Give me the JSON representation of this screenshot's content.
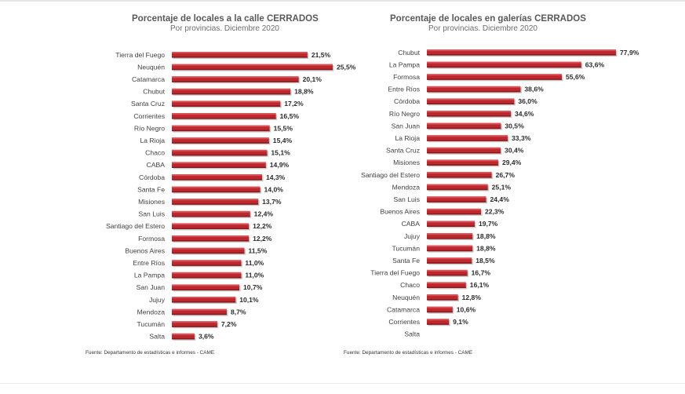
{
  "chart_data": [
    {
      "type": "bar",
      "orientation": "horizontal",
      "title": "Porcentaje de locales a la calle CERRADOS",
      "subtitle": "Por provincias. Diciembre 2020",
      "source": "Fuente: Departamento de estadísticas e informes - CAME",
      "bar_color": "#c0272d",
      "categories": [
        "Tierra del Fuego",
        "Neuquén",
        "Catamarca",
        "Chubut",
        "Santa Cruz",
        "Corrientes",
        "Río Negro",
        "La Rioja",
        "Chaco",
        "CABA",
        "Córdoba",
        "Santa Fe",
        "Misiones",
        "San Luis",
        "Santiago del Estero",
        "Formosa",
        "Buenos Aires",
        "Entre Ríos",
        "La Pampa",
        "San Juan",
        "Jujuy",
        "Mendoza",
        "Tucumán",
        "Salta"
      ],
      "values": [
        21.5,
        25.5,
        20.1,
        18.8,
        17.2,
        16.5,
        15.5,
        15.4,
        15.1,
        14.9,
        14.3,
        14.0,
        13.7,
        12.4,
        12.2,
        12.2,
        11.5,
        11.0,
        11.0,
        10.7,
        10.1,
        8.7,
        7.2,
        3.6
      ],
      "value_labels": [
        "21,5%",
        "25,5%",
        "20,1%",
        "18,8%",
        "17,2%",
        "16,5%",
        "15,5%",
        "15,4%",
        "15,1%",
        "14,9%",
        "14,3%",
        "14,0%",
        "13,7%",
        "12,4%",
        "12,2%",
        "12,2%",
        "11,5%",
        "11,0%",
        "11,0%",
        "10,7%",
        "10,1%",
        "8,7%",
        "7,2%",
        "3,6%"
      ],
      "xlim": [
        0,
        25.5
      ]
    },
    {
      "type": "bar",
      "orientation": "horizontal",
      "title": "Porcentaje de locales en galerías CERRADOS",
      "subtitle": "Por provincias. Diciembre 2020",
      "source": "Fuente: Departamento de estadísticas e informes - CAME",
      "bar_color": "#c0272d",
      "categories": [
        "Chubut",
        "La Pampa",
        "Formosa",
        "Entre Ríos",
        "Córdoba",
        "Río Negro",
        "San Juan",
        "La Rioja",
        "Santa Cruz",
        "Misiones",
        "Santiago del Estero",
        "Mendoza",
        "San Luis",
        "Buenos Aires",
        "CABA",
        "Jujuy",
        "Tucumán",
        "Santa Fe",
        "Tierra del Fuego",
        "Chaco",
        "Neuquén",
        "Catamarca",
        "Corrientes",
        "Salta"
      ],
      "values": [
        77.9,
        63.6,
        55.6,
        38.6,
        36.0,
        34.6,
        30.5,
        33.3,
        30.4,
        29.4,
        26.7,
        25.1,
        24.4,
        22.3,
        19.7,
        18.8,
        18.8,
        18.5,
        16.7,
        16.1,
        12.8,
        10.6,
        9.1,
        0
      ],
      "value_labels": [
        "77,9%",
        "63,6%",
        "55,6%",
        "38,6%",
        "36,0%",
        "34,6%",
        "30,5%",
        "33,3%",
        "30,4%",
        "29,4%",
        "26,7%",
        "25,1%",
        "24,4%",
        "22,3%",
        "19,7%",
        "18,8%",
        "18,8%",
        "18,5%",
        "16,7%",
        "16,1%",
        "12,8%",
        "10,6%",
        "9,1%",
        ""
      ],
      "xlim": [
        0,
        77.9
      ]
    }
  ]
}
